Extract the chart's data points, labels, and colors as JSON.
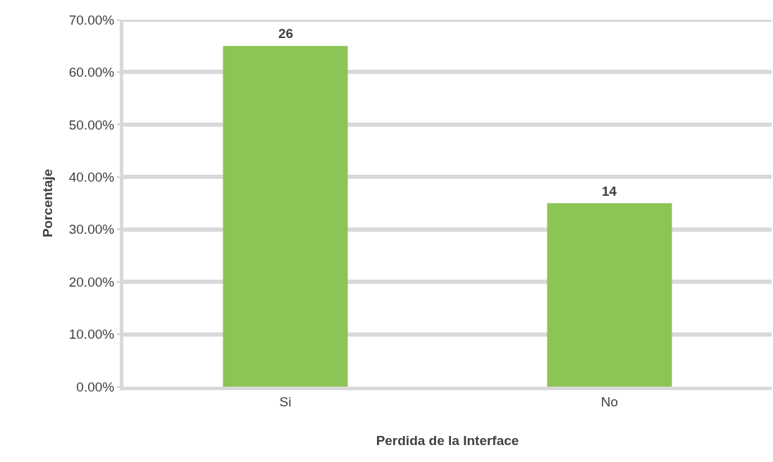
{
  "chart_data": {
    "type": "bar",
    "xlabel": "Perdida de la Interface",
    "ylabel": "Porcentaje",
    "categories": [
      "Si",
      "No"
    ],
    "values": [
      0.65,
      0.35
    ],
    "annotations": [
      {
        "text": "26",
        "x": "Si",
        "y": 0.65
      },
      {
        "text": "14",
        "x": "No",
        "y": 0.35
      }
    ],
    "color": "#8dc456",
    "ylim": [
      0,
      0.7
    ],
    "yticks": [
      {
        "value": 0,
        "label": "0.00%"
      },
      {
        "value": 0.1,
        "label": "10.00%"
      },
      {
        "value": 0.2,
        "label": "20.00%"
      },
      {
        "value": 0.3,
        "label": "30.00%"
      },
      {
        "value": 0.4,
        "label": "40.00%"
      },
      {
        "value": 0.5,
        "label": "50.00%"
      },
      {
        "value": 0.6,
        "label": "60.00%"
      },
      {
        "value": 0.7,
        "label": "70.00%"
      }
    ],
    "grid": "y"
  }
}
